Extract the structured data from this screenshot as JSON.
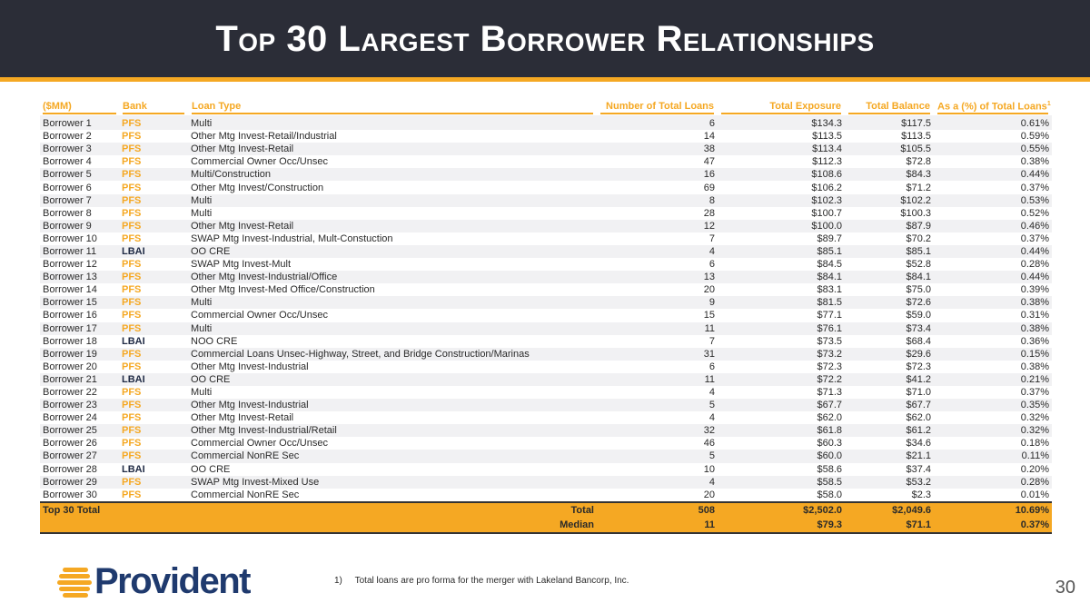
{
  "title": "Top 30 Largest Borrower Relationships",
  "columns": {
    "label": "($MM)",
    "bank": "Bank",
    "loan_type": "Loan Type",
    "num_loans": "Number of Total Loans",
    "exposure": "Total Exposure",
    "balance": "Total Balance",
    "pct": "As a (%) of Total Loans",
    "pct_footnote_marker": "1"
  },
  "rows": [
    {
      "borrower": "Borrower 1",
      "bank": "PFS",
      "type": "Multi",
      "loans": "6",
      "exposure": "$134.3",
      "balance": "$117.5",
      "pct": "0.61%"
    },
    {
      "borrower": "Borrower 2",
      "bank": "PFS",
      "type": "Other Mtg Invest-Retail/Industrial",
      "loans": "14",
      "exposure": "$113.5",
      "balance": "$113.5",
      "pct": "0.59%"
    },
    {
      "borrower": "Borrower 3",
      "bank": "PFS",
      "type": "Other Mtg Invest-Retail",
      "loans": "38",
      "exposure": "$113.4",
      "balance": "$105.5",
      "pct": "0.55%"
    },
    {
      "borrower": "Borrower 4",
      "bank": "PFS",
      "type": "Commercial Owner Occ/Unsec",
      "loans": "47",
      "exposure": "$112.3",
      "balance": "$72.8",
      "pct": "0.38%"
    },
    {
      "borrower": "Borrower 5",
      "bank": "PFS",
      "type": "Multi/Construction",
      "loans": "16",
      "exposure": "$108.6",
      "balance": "$84.3",
      "pct": "0.44%"
    },
    {
      "borrower": "Borrower 6",
      "bank": "PFS",
      "type": "Other Mtg Invest/Construction",
      "loans": "69",
      "exposure": "$106.2",
      "balance": "$71.2",
      "pct": "0.37%"
    },
    {
      "borrower": "Borrower 7",
      "bank": "PFS",
      "type": "Multi",
      "loans": "8",
      "exposure": "$102.3",
      "balance": "$102.2",
      "pct": "0.53%"
    },
    {
      "borrower": "Borrower 8",
      "bank": "PFS",
      "type": "Multi",
      "loans": "28",
      "exposure": "$100.7",
      "balance": "$100.3",
      "pct": "0.52%"
    },
    {
      "borrower": "Borrower 9",
      "bank": "PFS",
      "type": "Other Mtg Invest-Retail",
      "loans": "12",
      "exposure": "$100.0",
      "balance": "$87.9",
      "pct": "0.46%"
    },
    {
      "borrower": "Borrower 10",
      "bank": "PFS",
      "type": "SWAP Mtg Invest-Industrial, Mult-Constuction",
      "loans": "7",
      "exposure": "$89.7",
      "balance": "$70.2",
      "pct": "0.37%"
    },
    {
      "borrower": "Borrower 11",
      "bank": "LBAI",
      "type": "OO CRE",
      "loans": "4",
      "exposure": "$85.1",
      "balance": "$85.1",
      "pct": "0.44%"
    },
    {
      "borrower": "Borrower 12",
      "bank": "PFS",
      "type": "SWAP Mtg Invest-Mult",
      "loans": "6",
      "exposure": "$84.5",
      "balance": "$52.8",
      "pct": "0.28%"
    },
    {
      "borrower": "Borrower 13",
      "bank": "PFS",
      "type": "Other Mtg Invest-Industrial/Office",
      "loans": "13",
      "exposure": "$84.1",
      "balance": "$84.1",
      "pct": "0.44%"
    },
    {
      "borrower": "Borrower 14",
      "bank": "PFS",
      "type": "Other Mtg Invest-Med Office/Construction",
      "loans": "20",
      "exposure": "$83.1",
      "balance": "$75.0",
      "pct": "0.39%"
    },
    {
      "borrower": "Borrower 15",
      "bank": "PFS",
      "type": "Multi",
      "loans": "9",
      "exposure": "$81.5",
      "balance": "$72.6",
      "pct": "0.38%"
    },
    {
      "borrower": "Borrower 16",
      "bank": "PFS",
      "type": "Commercial Owner Occ/Unsec",
      "loans": "15",
      "exposure": "$77.1",
      "balance": "$59.0",
      "pct": "0.31%"
    },
    {
      "borrower": "Borrower 17",
      "bank": "PFS",
      "type": "Multi",
      "loans": "11",
      "exposure": "$76.1",
      "balance": "$73.4",
      "pct": "0.38%"
    },
    {
      "borrower": "Borrower 18",
      "bank": "LBAI",
      "type": "NOO CRE",
      "loans": "7",
      "exposure": "$73.5",
      "balance": "$68.4",
      "pct": "0.36%"
    },
    {
      "borrower": "Borrower 19",
      "bank": "PFS",
      "type": "Commercial Loans Unsec-Highway, Street, and Bridge Construction/Marinas",
      "loans": "31",
      "exposure": "$73.2",
      "balance": "$29.6",
      "pct": "0.15%"
    },
    {
      "borrower": "Borrower 20",
      "bank": "PFS",
      "type": "Other Mtg Invest-Industrial",
      "loans": "6",
      "exposure": "$72.3",
      "balance": "$72.3",
      "pct": "0.38%"
    },
    {
      "borrower": "Borrower 21",
      "bank": "LBAI",
      "type": "OO CRE",
      "loans": "11",
      "exposure": "$72.2",
      "balance": "$41.2",
      "pct": "0.21%"
    },
    {
      "borrower": "Borrower 22",
      "bank": "PFS",
      "type": "Multi",
      "loans": "4",
      "exposure": "$71.3",
      "balance": "$71.0",
      "pct": "0.37%"
    },
    {
      "borrower": "Borrower 23",
      "bank": "PFS",
      "type": "Other Mtg Invest-Industrial",
      "loans": "5",
      "exposure": "$67.7",
      "balance": "$67.7",
      "pct": "0.35%"
    },
    {
      "borrower": "Borrower 24",
      "bank": "PFS",
      "type": "Other Mtg Invest-Retail",
      "loans": "4",
      "exposure": "$62.0",
      "balance": "$62.0",
      "pct": "0.32%"
    },
    {
      "borrower": "Borrower 25",
      "bank": "PFS",
      "type": "Other Mtg Invest-Industrial/Retail",
      "loans": "32",
      "exposure": "$61.8",
      "balance": "$61.2",
      "pct": "0.32%"
    },
    {
      "borrower": "Borrower 26",
      "bank": "PFS",
      "type": "Commercial Owner Occ/Unsec",
      "loans": "46",
      "exposure": "$60.3",
      "balance": "$34.6",
      "pct": "0.18%"
    },
    {
      "borrower": "Borrower 27",
      "bank": "PFS",
      "type": "Commercial NonRE Sec",
      "loans": "5",
      "exposure": "$60.0",
      "balance": "$21.1",
      "pct": "0.11%"
    },
    {
      "borrower": "Borrower 28",
      "bank": "LBAI",
      "type": "OO CRE",
      "loans": "10",
      "exposure": "$58.6",
      "balance": "$37.4",
      "pct": "0.20%"
    },
    {
      "borrower": "Borrower 29",
      "bank": "PFS",
      "type": "SWAP Mtg Invest-Mixed Use",
      "loans": "4",
      "exposure": "$58.5",
      "balance": "$53.2",
      "pct": "0.28%"
    },
    {
      "borrower": "Borrower 30",
      "bank": "PFS",
      "type": "Commercial NonRE Sec",
      "loans": "20",
      "exposure": "$58.0",
      "balance": "$2.3",
      "pct": "0.01%"
    }
  ],
  "totals": {
    "label": "Top 30 Total",
    "total_label": "Total",
    "total_loans": "508",
    "total_exposure": "$2,502.0",
    "total_balance": "$2,049.6",
    "total_pct": "10.69%",
    "median_label": "Median",
    "median_loans": "11",
    "median_exposure": "$79.3",
    "median_balance": "$71.1",
    "median_pct": "0.37%"
  },
  "footnote": {
    "number": "1)",
    "text": "Total loans are pro forma for the merger with Lakeland Bancorp, Inc."
  },
  "logo": {
    "text": "Provident"
  },
  "page_number": "30",
  "colors": {
    "header_bg": "#2b2d37",
    "accent": "#f5a823",
    "lbai_text": "#1f2a44",
    "logo_blue": "#1f3a6e"
  },
  "icons": {
    "logo_mark": "provident-flame-icon"
  }
}
